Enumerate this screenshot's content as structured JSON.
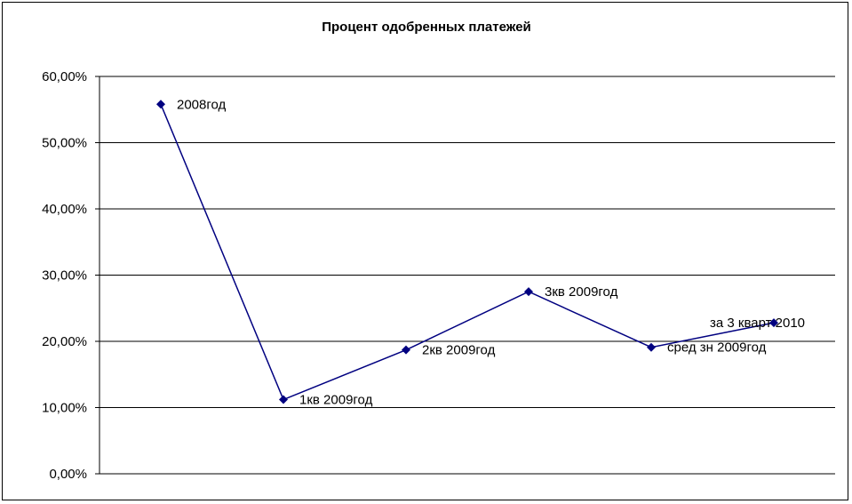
{
  "chart_data": {
    "type": "line",
    "title": "Процент одобренных платежей",
    "xlabel": "",
    "ylabel": "",
    "ylim": [
      0,
      60
    ],
    "y_tick_labels": [
      "0,00%",
      "10,00%",
      "20,00%",
      "30,00%",
      "40,00%",
      "50,00%",
      "60,00%"
    ],
    "grid": true,
    "legend": "none",
    "color": "#000080",
    "categories": [
      "2008год",
      "1кв 2009год",
      "2кв 2009год",
      "3кв 2009год",
      "сред зн 2009год",
      "за 3 кварт 2010"
    ],
    "values": [
      55.8,
      11.2,
      18.7,
      27.5,
      19.1,
      22.8
    ],
    "data_labels": [
      "2008год",
      "1кв 2009год",
      "2кв 2009год",
      "3кв 2009год",
      "сред зн 2009год",
      "за 3 кварт 2010"
    ]
  }
}
